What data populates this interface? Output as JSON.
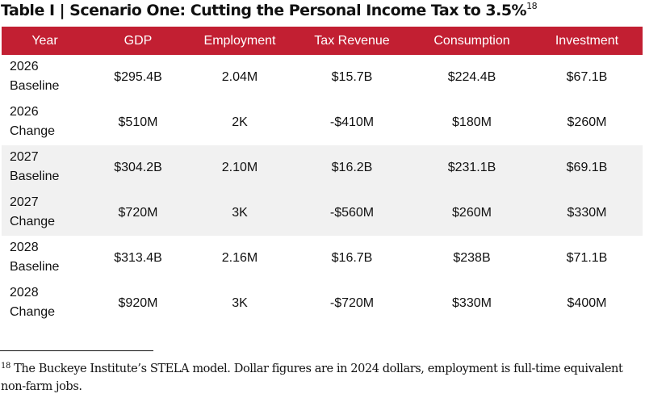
{
  "title": {
    "text": "Table I | Scenario One: Cutting the Personal Income Tax to 3.5%",
    "footnote_ref": "18"
  },
  "table": {
    "header_color": "#c21f32",
    "columns": [
      "Year",
      "GDP",
      "Employment",
      "Tax Revenue",
      "Consumption",
      "Investment"
    ],
    "rows": [
      {
        "year": "2026",
        "kind": "Baseline",
        "gdp": "$295.4B",
        "employment": "2.04M",
        "tax_revenue": "$15.7B",
        "consumption": "$224.4B",
        "investment": "$67.1B"
      },
      {
        "year": "2026",
        "kind": "Change",
        "gdp": "$510M",
        "employment": "2K",
        "tax_revenue": "-$410M",
        "consumption": "$180M",
        "investment": "$260M"
      },
      {
        "year": "2027",
        "kind": "Baseline",
        "gdp": "$304.2B",
        "employment": "2.10M",
        "tax_revenue": "$16.2B",
        "consumption": "$231.1B",
        "investment": "$69.1B"
      },
      {
        "year": "2027",
        "kind": "Change",
        "gdp": "$720M",
        "employment": "3K",
        "tax_revenue": "-$560M",
        "consumption": "$260M",
        "investment": "$330M"
      },
      {
        "year": "2028",
        "kind": "Baseline",
        "gdp": "$313.4B",
        "employment": "2.16M",
        "tax_revenue": "$16.7B",
        "consumption": "$238B",
        "investment": "$71.1B"
      },
      {
        "year": "2028",
        "kind": "Change",
        "gdp": "$920M",
        "employment": "3K",
        "tax_revenue": "-$720M",
        "consumption": "$330M",
        "investment": "$400M"
      }
    ]
  },
  "footnote": {
    "number": "18",
    "text": " The Buckeye Institute’s STELA model. Dollar figures are in 2024 dollars, employment is full-time equivalent non-farm jobs."
  }
}
